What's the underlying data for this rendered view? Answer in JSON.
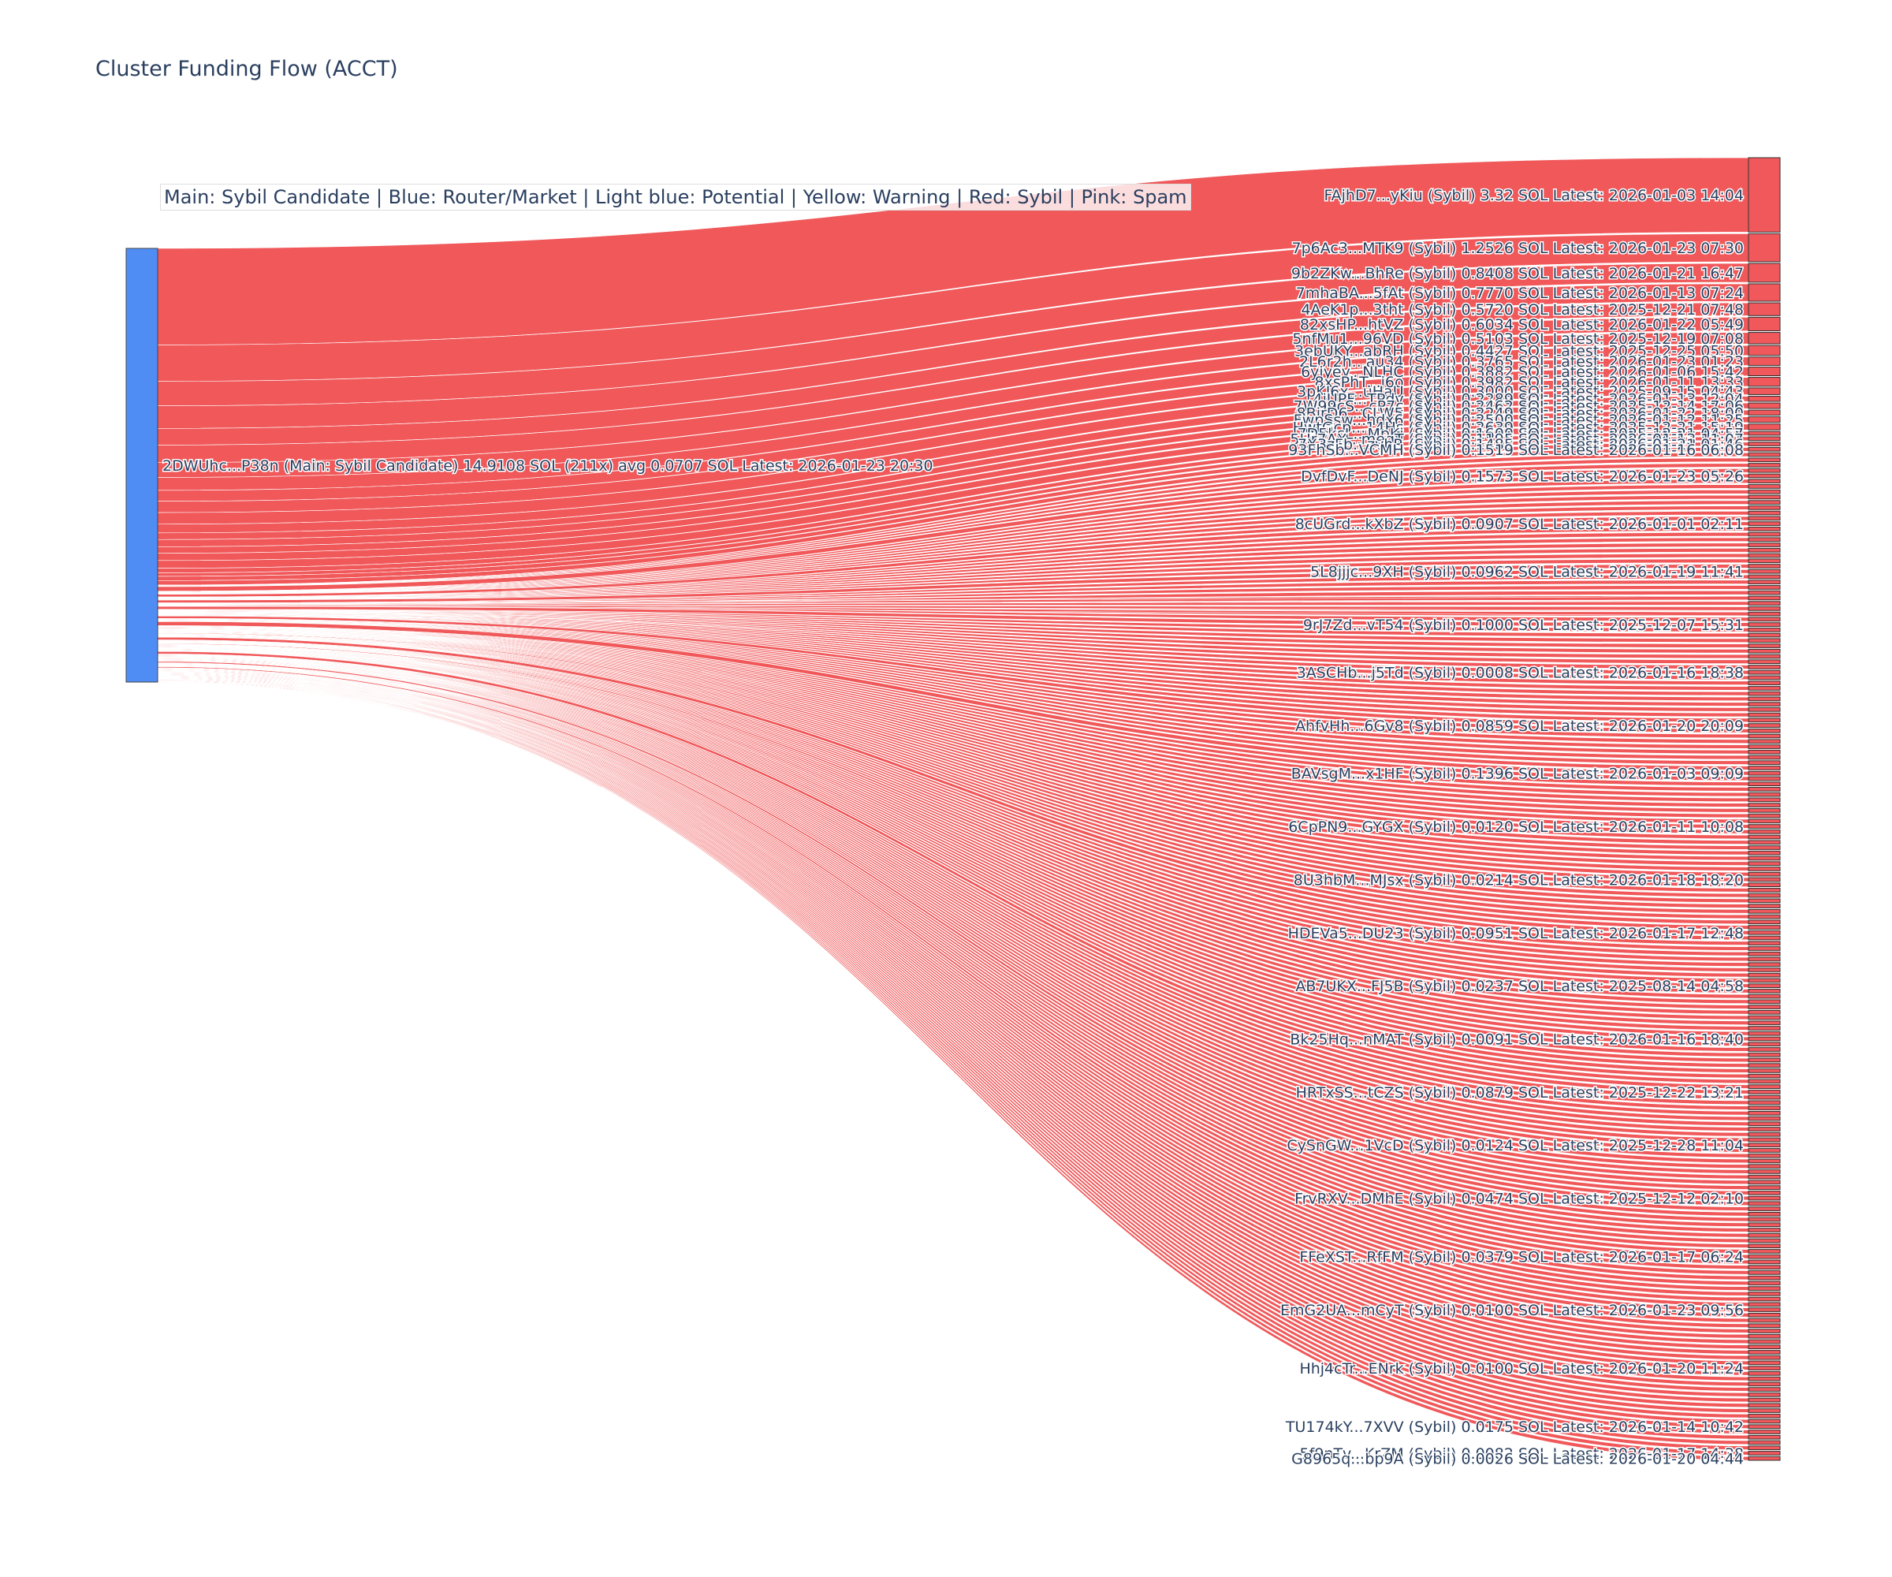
{
  "title": "Cluster Funding Flow (ACCT)",
  "legend_text": "Main: Sybil Candidate  |  Blue: Router/Market | Light blue: Potential | Yellow: Warning | Red: Sybil | Pink: Spam",
  "colors": {
    "source_node": "#4f8df5",
    "target_node": "#f0585c",
    "link": "#ef4a4c",
    "text": "#2a3f5f"
  },
  "chart_data": {
    "type": "sankey",
    "title": "Cluster Funding Flow (ACCT)",
    "source": {
      "label": "2DWUhc...P38n (Main: Sybil Candidate) 14.9108 SOL (211x) avg 0.0707 SOL Latest: 2026-01-23 20:30",
      "total_sol": 14.9108,
      "tx_count": 211,
      "avg_sol": 0.0707
    },
    "targets_total_count": 211,
    "targets_readable": [
      {
        "label": "FAjhD7...yKiu (Sybil) 3.32 SOL Latest: 2026-01-03 14:04",
        "value": 3.32
      },
      {
        "label": "7p6Ac3...MTK9 (Sybil) 1.2526 SOL Latest: 2026-01-23 07:30",
        "value": 1.2526
      },
      {
        "label": "9b2ZKw...BhRe (Sybil) 0.8408 SOL Latest: 2026-01-21 16:47",
        "value": 0.8408
      },
      {
        "label": "7mhaBA...5fAt (Sybil) 0.7770 SOL Latest: 2026-01-13 07:24",
        "value": 0.777
      },
      {
        "label": "4AeK1p...3tht (Sybil) 0.5720 SOL Latest: 2025-12-21 07:48",
        "value": 0.572
      },
      {
        "label": "82xsHP...htVZ (Sybil) 0.6034 SOL Latest: 2026-01-22 05:49",
        "value": 0.6034
      },
      {
        "label": "5nfMu1...96VD (Sybil) 0.5103 SOL Latest: 2025-12-19 07:08",
        "value": 0.5103
      },
      {
        "label": "3ebUKY...abRH (Sybil) 0.4427 SOL Latest: 2025-12-25 05:50",
        "value": 0.4427
      },
      {
        "label": "2L6r2h...au34 (Sybil) 0.3765 SOL Latest: 2026-01-23 01:23",
        "value": 0.3765
      },
      {
        "label": "6yjyey...NLHC (Sybil) 0.3882 SOL Latest: 2026-01-06 15:42",
        "value": 0.3882
      },
      {
        "label": "8xsPhT...j6o (Sybil) 0.3982 SOL Latest: 2026-01-11 13:33",
        "value": 0.3982
      },
      {
        "label": "3pKJ6x...uHaU (Sybil) 0.3000 SOL Latest: 2025-09-15 04:43",
        "value": 0.3
      },
      {
        "label": "4jUPF...TPdv (Sybil) 0.2289 SOL Latest: 2026-01-13 12:04",
        "value": 0.2289
      },
      {
        "label": "7W99cS...cP7c (Sybil) 0.2462 SOL Latest: 2025-12-14 17:06",
        "value": 0.2462
      },
      {
        "label": "8BirD6...CLW5 (Sybil) 0.2249 SOL Latest: 2026-01-22 18:00",
        "value": 0.2249
      },
      {
        "label": "FwpSsw...hdx6 (Sybil) 0.2500 SOL Latest: 2026-01-12 11:25",
        "value": 0.25
      },
      {
        "label": "HwtGcp...14Hs (Sybil) 0.2639 SOL Latest: 2025-12-21 15:19",
        "value": 0.2639
      },
      {
        "label": "7D5kcL...MpKi (Sybil) 0.1600 SOL Latest: 2025-12-21 04:57",
        "value": 0.16
      },
      {
        "label": "5Hr7AX...meqT (Sybil) 0.1195 SOL Latest: 2026-01-13 11:07",
        "value": 0.1195
      },
      {
        "label": "7X3zFb...zvhR (Sybil) 0.1485 SOL Latest: 2026-01-21 01:46",
        "value": 0.1485
      },
      {
        "label": "93FhSb...VCMH (Sybil) 0.1519 SOL Latest: 2026-01-16 06:08",
        "value": 0.1519
      },
      {
        "label": "DvfDvF...DeNJ (Sybil) 0.1573 SOL Latest: 2026-01-23 05:26",
        "value": 0.1573
      },
      {
        "label": "8cUGrd...kXbZ (Sybil) 0.0907 SOL Latest: 2026-01-01 02:11",
        "value": 0.0907
      },
      {
        "label": "5L8jjjc...9XH (Sybil) 0.0962 SOL Latest: 2026-01-19 11:41",
        "value": 0.0962
      },
      {
        "label": "9rJ7Zd...vT54 (Sybil) 0.1000 SOL Latest: 2025-12-07 15:31",
        "value": 0.1
      },
      {
        "label": "3ASCHb...j5Td (Sybil) 0.0008 SOL Latest: 2026-01-16 18:38",
        "value": 0.0008
      },
      {
        "label": "AhfvHh...6Gv8 (Sybil) 0.0859 SOL Latest: 2026-01-20 20:09",
        "value": 0.0859
      },
      {
        "label": "BAVsgM...x1HF (Sybil) 0.1396 SOL Latest: 2026-01-03 09:09",
        "value": 0.1396
      },
      {
        "label": "6CpPN9...GYGX (Sybil) 0.0120 SOL Latest: 2026-01-11 10:08",
        "value": 0.012
      },
      {
        "label": "8U3hbM...MJsx (Sybil) 0.0214 SOL Latest: 2026-01-18 18:20",
        "value": 0.0214
      },
      {
        "label": "HDEVa5...DU23 (Sybil) 0.0951 SOL Latest: 2026-01-17 12:48",
        "value": 0.0951
      },
      {
        "label": "AB7UKX...FJ5B (Sybil) 0.0237 SOL Latest: 2025-08-14 04:58",
        "value": 0.0237
      },
      {
        "label": "Bk25Hq...nMAT (Sybil) 0.0091 SOL Latest: 2026-01-16 18:40",
        "value": 0.0091
      },
      {
        "label": "HRTxSS...tCZS (Sybil) 0.0879 SOL Latest: 2025-12-22 13:21",
        "value": 0.0879
      },
      {
        "label": "CySnGW...1VcD (Sybil) 0.0124 SOL Latest: 2025-12-28 11:04",
        "value": 0.0124
      },
      {
        "label": "FrvRXV...DMhE (Sybil) 0.0474 SOL Latest: 2025-12-12 02:10",
        "value": 0.0474
      },
      {
        "label": "FFeXST...RfFM (Sybil) 0.0379 SOL Latest: 2026-01-17 06:24",
        "value": 0.0379
      },
      {
        "label": "EmG2UA...mCyT (Sybil) 0.0100 SOL Latest: 2026-01-23 09:56",
        "value": 0.01
      },
      {
        "label": "Hhj4cTr...ENrk (Sybil) 0.0100 SOL Latest: 2026-01-20 11:24",
        "value": 0.01
      },
      {
        "label": "TU174kY...7XVV (Sybil) 0.0175 SOL Latest: 2026-01-14 10:42",
        "value": 0.0175
      },
      {
        "label": "5f9nTv...KrZM (Sybil) 0.0082 SOL Latest: 2026-01-17 14:38",
        "value": 0.0082
      },
      {
        "label": "G8965q...bp9A (Sybil) 0.0026 SOL Latest: 2026-01-20 04:44",
        "value": 0.0026
      }
    ]
  }
}
